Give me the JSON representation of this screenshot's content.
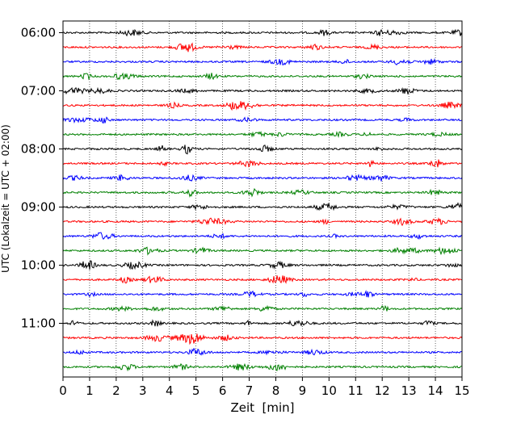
{
  "chart_data": {
    "type": "line",
    "title": "",
    "xlabel": "Zeit  [min]",
    "ylabel": "UTC (Lokalzeit = UTC + 02:00)",
    "xlim": [
      0,
      15
    ],
    "x_ticks": [
      0,
      1,
      2,
      3,
      4,
      5,
      6,
      7,
      8,
      9,
      10,
      11,
      12,
      13,
      14,
      15
    ],
    "x_tick_labels": [
      "0",
      "1",
      "2",
      "3",
      "4",
      "5",
      "6",
      "7",
      "8",
      "9",
      "10",
      "11",
      "12",
      "13",
      "14",
      "15"
    ],
    "y_tick_labels": [
      "06:00",
      "07:00",
      "08:00",
      "09:00",
      "10:00",
      "11:00"
    ],
    "grid": "vertical dotted at each minute",
    "legend": "none",
    "trace_interval_min": 15,
    "trace_colors_cycle": [
      "#000000",
      "#ff0000",
      "#0000ff",
      "#008000"
    ],
    "traces": [
      {
        "start": "06:00"
      },
      {
        "start": "06:15"
      },
      {
        "start": "06:30"
      },
      {
        "start": "06:45"
      },
      {
        "start": "07:00"
      },
      {
        "start": "07:15"
      },
      {
        "start": "07:30"
      },
      {
        "start": "07:45"
      },
      {
        "start": "08:00"
      },
      {
        "start": "08:15"
      },
      {
        "start": "08:30"
      },
      {
        "start": "08:45"
      },
      {
        "start": "09:00"
      },
      {
        "start": "09:15"
      },
      {
        "start": "09:30"
      },
      {
        "start": "09:45"
      },
      {
        "start": "10:00"
      },
      {
        "start": "10:15"
      },
      {
        "start": "10:30"
      },
      {
        "start": "10:45"
      },
      {
        "start": "11:00"
      },
      {
        "start": "11:15"
      },
      {
        "start": "11:30"
      },
      {
        "start": "11:45"
      }
    ]
  }
}
